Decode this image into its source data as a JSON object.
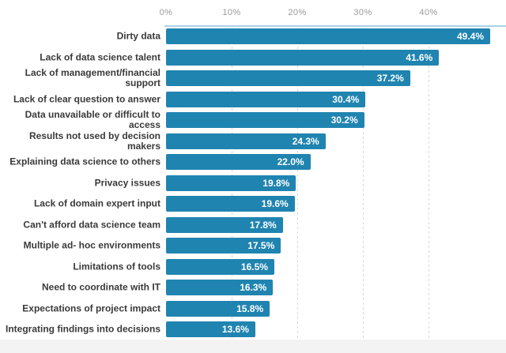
{
  "chart_data": {
    "type": "bar",
    "orientation": "horizontal",
    "title": "",
    "xlabel": "",
    "ylabel": "",
    "legend": "none",
    "grid": "vertical dashed gridlines at 10%, 20%, 30%, 40%; x-axis on top",
    "x_axis": {
      "ticks": [
        "0%",
        "10%",
        "20%",
        "30%",
        "40%"
      ],
      "tick_values": [
        0,
        10,
        20,
        30,
        40
      ],
      "max_percent_at_right_edge": 51.8
    },
    "bars": [
      {
        "label": "Dirty data",
        "value": 49.4,
        "value_label": "49.4%"
      },
      {
        "label": "Lack of data science talent",
        "value": 41.6,
        "value_label": "41.6%"
      },
      {
        "label": "Lack of management/financial\nsupport",
        "value": 37.2,
        "value_label": "37.2%"
      },
      {
        "label": "Lack of clear question to answer",
        "value": 30.4,
        "value_label": "30.4%"
      },
      {
        "label": "Data unavailable or difficult to\naccess",
        "value": 30.2,
        "value_label": "30.2%"
      },
      {
        "label": "Results not used by decision makers",
        "value": 24.3,
        "value_label": "24.3%"
      },
      {
        "label": "Explaining data science to others",
        "value": 22.0,
        "value_label": "22.0%"
      },
      {
        "label": "Privacy issues",
        "value": 19.8,
        "value_label": "19.8%"
      },
      {
        "label": "Lack of domain expert input",
        "value": 19.6,
        "value_label": "19.6%"
      },
      {
        "label": "Can't afford data science team",
        "value": 17.8,
        "value_label": "17.8%"
      },
      {
        "label": "Multiple ad- hoc environments",
        "value": 17.5,
        "value_label": "17.5%"
      },
      {
        "label": "Limitations of tools",
        "value": 16.5,
        "value_label": "16.5%"
      },
      {
        "label": "Need to coordinate with IT",
        "value": 16.3,
        "value_label": "16.3%"
      },
      {
        "label": "Expectations of project impact",
        "value": 15.8,
        "value_label": "15.8%"
      },
      {
        "label": "Integrating findings into decisions",
        "value": 13.6,
        "value_label": "13.6%"
      }
    ],
    "colors": {
      "bar": "#2084b0",
      "value_text": "#ffffff",
      "category_text": "#3a3a3a",
      "tick_text": "#9a9a9a",
      "axis_line": "#a9d3e6",
      "gridline": "#d9d9d9",
      "footer_band": "#f3f3f4",
      "background": "#ffffff"
    }
  }
}
